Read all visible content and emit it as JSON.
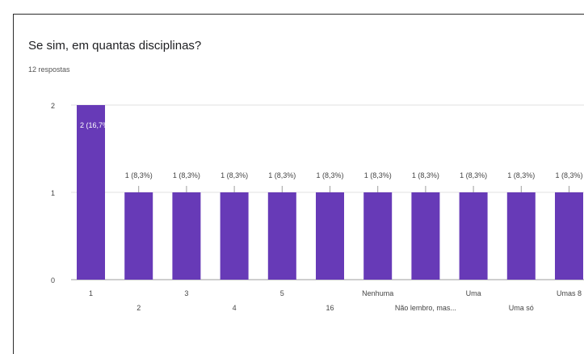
{
  "header": {
    "title": "Se sim, em quantas disciplinas?",
    "subtitle": "12 respostas"
  },
  "colors": {
    "bar": "#673ab7",
    "gridline": "#e0e0e0",
    "axis": "#9e9e9e",
    "tick_text": "#444444"
  },
  "chart_data": {
    "type": "bar",
    "title": "Se sim, em quantas disciplinas?",
    "xlabel": "",
    "ylabel": "",
    "ylim": [
      0,
      2
    ],
    "yticks": [
      "0",
      "1",
      "2"
    ],
    "grid": true,
    "categories": [
      "1",
      "2",
      "3",
      "4",
      "5",
      "16",
      "Nenhuma",
      "Não lembro, mas...",
      "Uma",
      "Uma só",
      "Umas 8"
    ],
    "category_labels_shown": [
      "1",
      "2",
      "3",
      "4",
      "5",
      "16",
      "Nenhuma",
      "Não lembro, mas...",
      "Uma",
      "Uma só",
      "Umas 8"
    ],
    "values": [
      2,
      1,
      1,
      1,
      1,
      1,
      1,
      1,
      1,
      1,
      1
    ],
    "data_labels": [
      "2 (16,7%)",
      "1 (8,3%)",
      "1 (8,3%)",
      "1 (8,3%)",
      "1 (8,3%)",
      "1 (8,3%)",
      "1 (8,3%)",
      "1 (8,3%)",
      "1 (8,3%)",
      "1 (8,3%)",
      "1 (8,3%)"
    ]
  }
}
